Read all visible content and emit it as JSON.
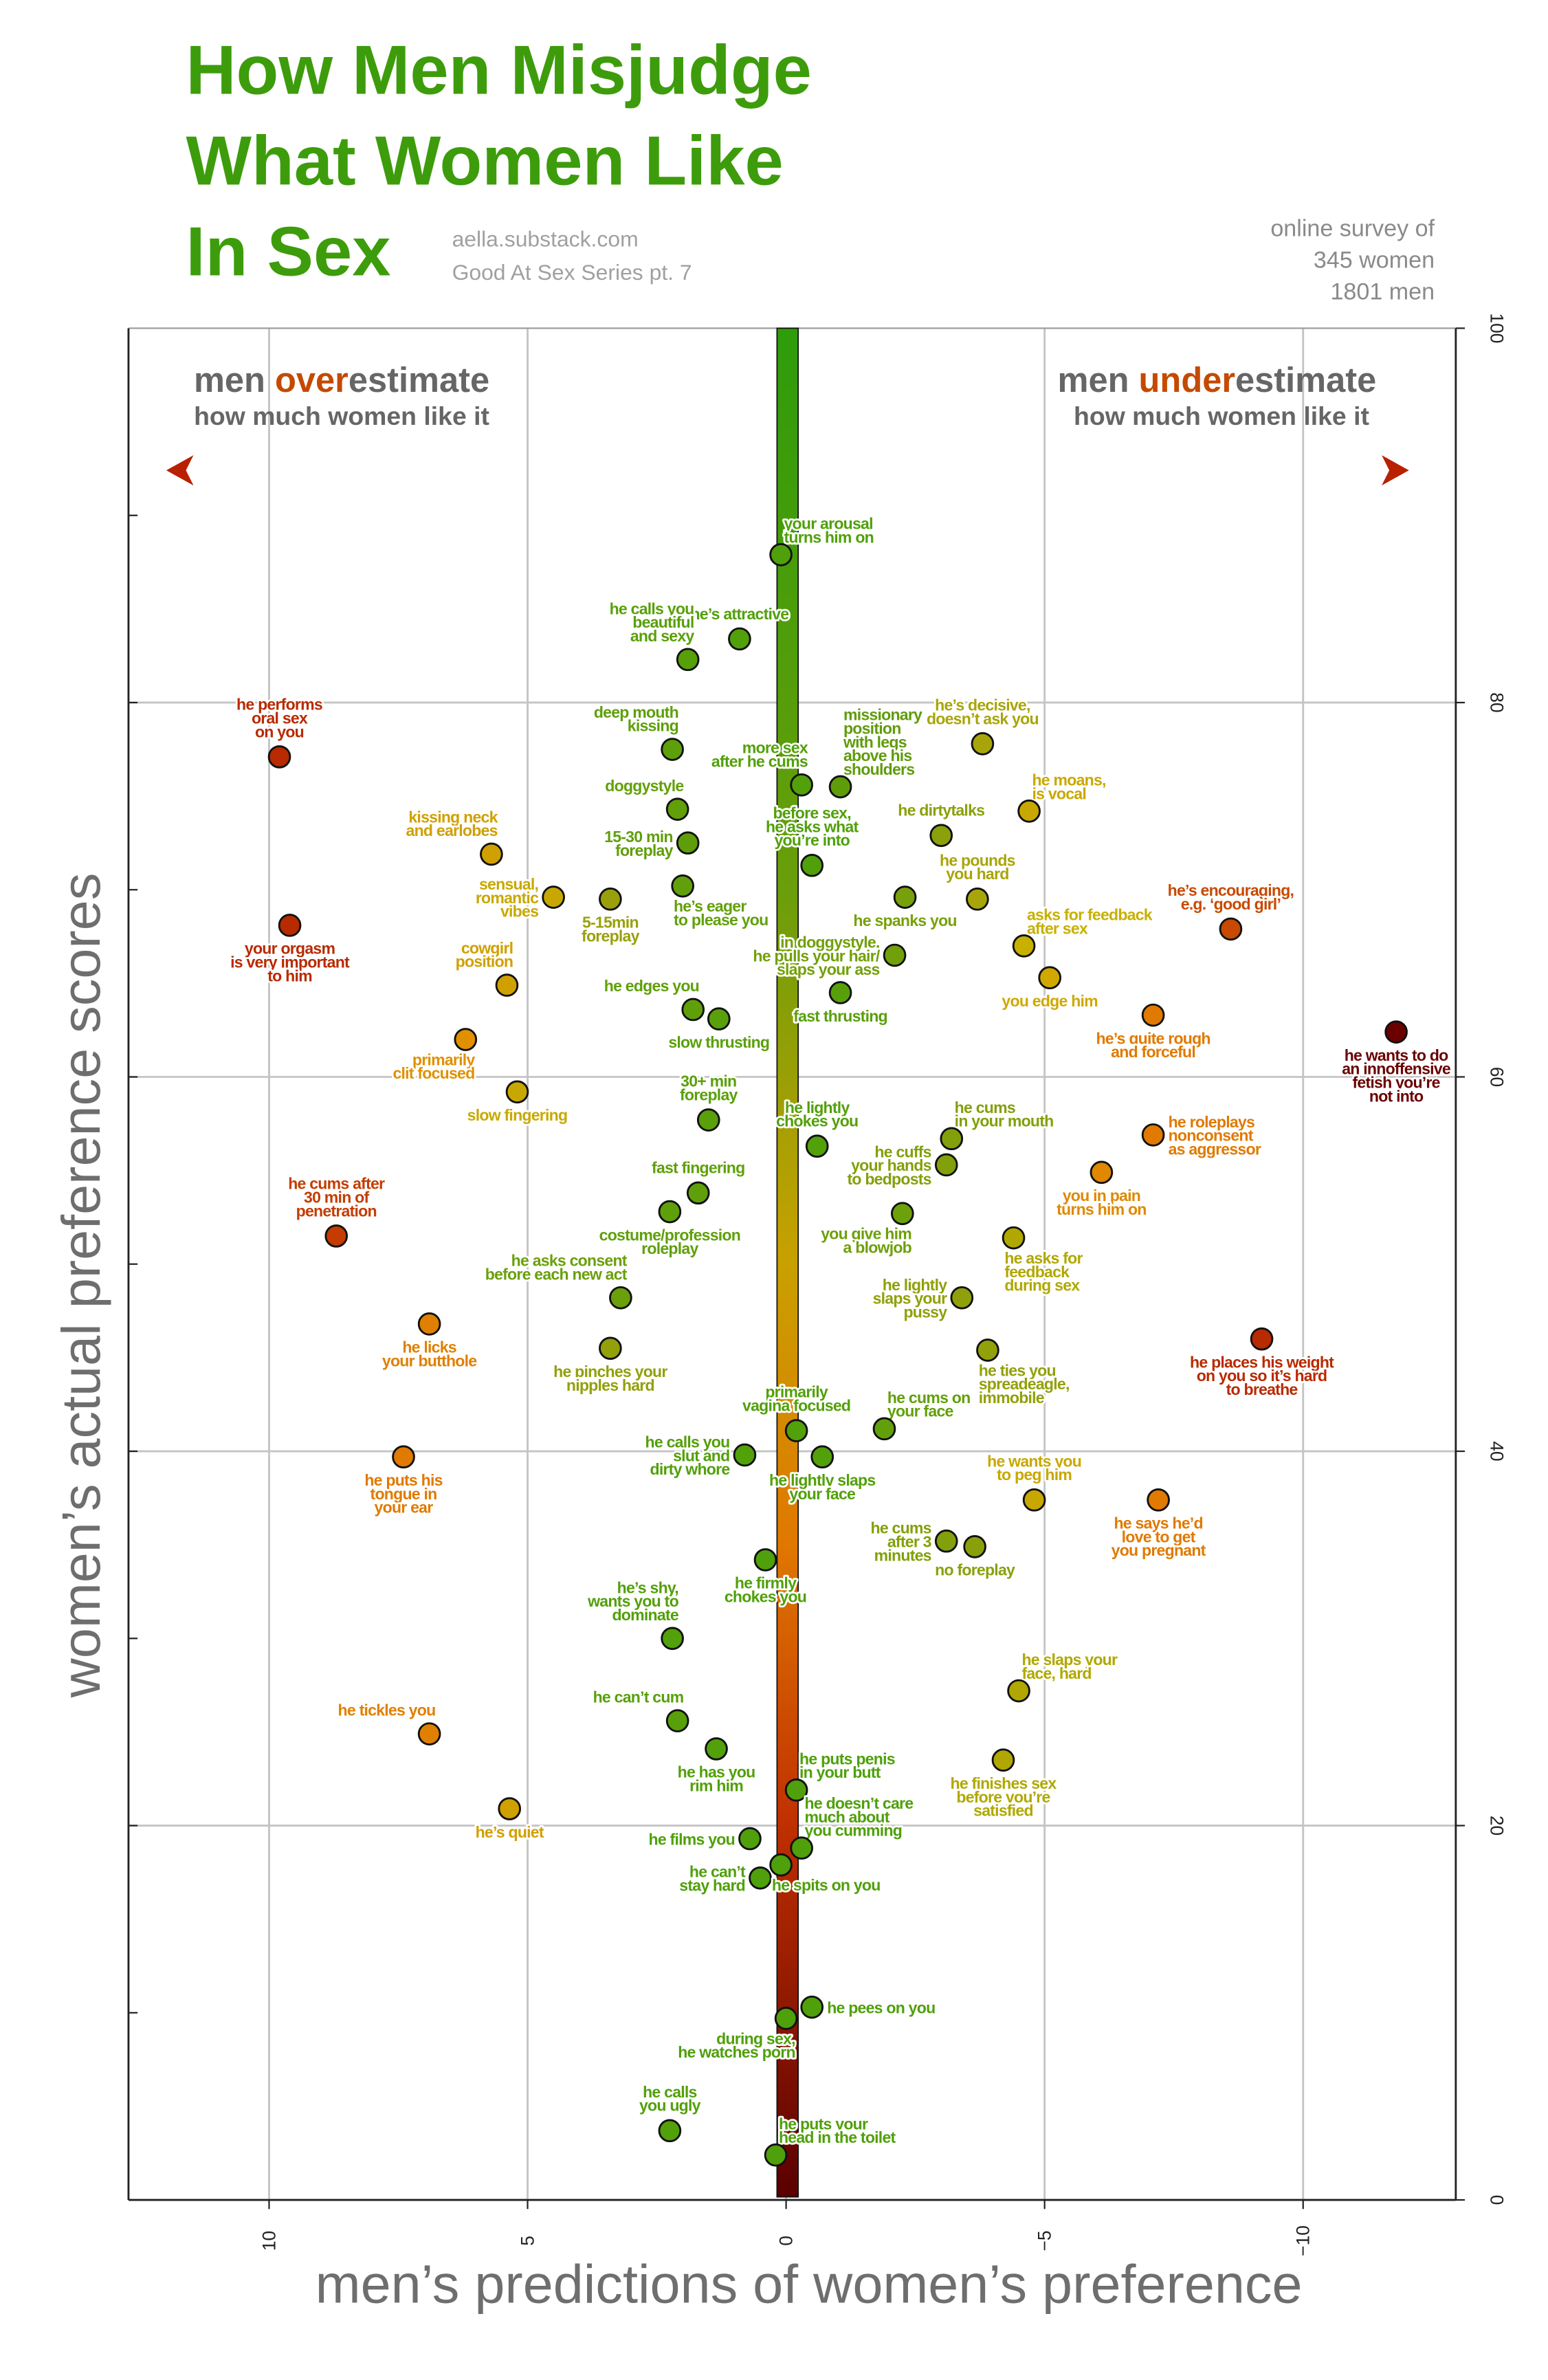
{
  "header": {
    "title_lines": [
      "How Men Misjudge",
      "What Women Like",
      "In Sex"
    ],
    "source": "aella.substack.com",
    "series": "Good At Sex Series pt. 7",
    "survey_lines": [
      "online survey of",
      "345 women",
      "1801 men"
    ]
  },
  "notes": {
    "left": {
      "pre": "men ",
      "em": "over",
      "post": "estimate",
      "line2": "how much women like it"
    },
    "right": {
      "pre": "men ",
      "em": "under",
      "post": "estimate",
      "line2": "how much women like it"
    },
    "em_color": "#c44a00"
  },
  "chart_data": {
    "type": "scatter",
    "title": "How Men Misjudge What Women Like In Sex",
    "xlabel": "men’s predictions of women’s preference",
    "ylabel": "women’s actual preference scores",
    "xlim": [
      12.5,
      -13
    ],
    "x_reversed": true,
    "ylim": [
      0,
      100
    ],
    "xticks": [
      10,
      5,
      0,
      -5,
      -10
    ],
    "xtick_labels": [
      "10",
      "5",
      "0",
      "−5",
      "−10"
    ],
    "yticks": [
      0,
      20,
      40,
      60,
      80,
      100
    ],
    "ytick_labels": [
      "0",
      "20",
      "40",
      "60",
      "80",
      "100"
    ],
    "grid": true,
    "points": [
      {
        "label": [
          "your arousal",
          "turns him on"
        ],
        "x": 0.1,
        "y": 87.9,
        "color": "#4fa00a",
        "pos": "above-right"
      },
      {
        "label": [
          "he’s attractive"
        ],
        "x": 0.9,
        "y": 83.4,
        "color": "#52a00a",
        "pos": "above"
      },
      {
        "label": [
          "he calls you",
          "beautiful",
          "and sexy"
        ],
        "x": 1.9,
        "y": 82.3,
        "color": "#58a00a",
        "pos": "above-left"
      },
      {
        "label": [
          "he performs",
          "oral sex",
          "on you"
        ],
        "x": 9.8,
        "y": 77.1,
        "color": "#b82a00",
        "pos": "above"
      },
      {
        "label": [
          "deep mouth",
          "kissing"
        ],
        "x": 2.2,
        "y": 77.5,
        "color": "#5da00a",
        "pos": "above-left"
      },
      {
        "label": [
          "missionary",
          "position",
          "with legs",
          "above his",
          "shoulders"
        ],
        "x": -1.05,
        "y": 75.5,
        "color": "#5f9c0a",
        "pos": "above-right"
      },
      {
        "label": [
          "more sex",
          "after he cums"
        ],
        "x": -0.3,
        "y": 75.6,
        "color": "#52a00a",
        "pos": "above-left"
      },
      {
        "label": [
          "he’s decisive,",
          "doesn’t ask you"
        ],
        "x": -3.8,
        "y": 77.8,
        "color": "#a8a50a",
        "pos": "above"
      },
      {
        "label": [
          "doggystyle"
        ],
        "x": 2.1,
        "y": 74.3,
        "color": "#62a00a",
        "pos": "above-left"
      },
      {
        "label": [
          "he moans,",
          "is vocal"
        ],
        "x": -4.7,
        "y": 74.2,
        "color": "#c8a800",
        "pos": "above-right"
      },
      {
        "label": [
          "15-30 min",
          "foreplay"
        ],
        "x": 1.9,
        "y": 72.5,
        "color": "#5f9e0a",
        "pos": "left"
      },
      {
        "label": [
          "he dirtytalks"
        ],
        "x": -3.0,
        "y": 72.9,
        "color": "#8ba00a",
        "pos": "above"
      },
      {
        "label": [
          "before sex,",
          "he asks what",
          "you’re into"
        ],
        "x": -0.5,
        "y": 71.3,
        "color": "#4fa00a",
        "pos": "above"
      },
      {
        "label": [
          "kissing neck",
          "and earlobes"
        ],
        "x": 5.7,
        "y": 71.9,
        "color": "#d0a000",
        "pos": "above-left"
      },
      {
        "label": [
          "sensual,",
          "romantic",
          "vibes"
        ],
        "x": 4.5,
        "y": 69.6,
        "color": "#c8a800",
        "pos": "left"
      },
      {
        "label": [
          "5-15min",
          "foreplay"
        ],
        "x": 3.4,
        "y": 69.5,
        "color": "#9aa00a",
        "pos": "below"
      },
      {
        "label": [
          "he’s eager",
          "to please you"
        ],
        "x": 2.0,
        "y": 70.2,
        "color": "#62a00a",
        "pos": "below-right"
      },
      {
        "label": [
          "he spanks you"
        ],
        "x": -2.3,
        "y": 69.6,
        "color": "#78a00a",
        "pos": "below"
      },
      {
        "label": [
          "he pounds",
          "you hard"
        ],
        "x": -3.7,
        "y": 69.5,
        "color": "#a8a50a",
        "pos": "above"
      },
      {
        "label": [
          "your orgasm",
          "is very important",
          "to him"
        ],
        "x": 9.6,
        "y": 68.1,
        "color": "#b82a00",
        "pos": "below"
      },
      {
        "label": [
          "he’s encouraging,",
          "e.g. ‘good girl’"
        ],
        "x": -8.6,
        "y": 67.9,
        "color": "#c84a00",
        "pos": "above"
      },
      {
        "label": [
          "in doggystyle,",
          "he pulls your hair/",
          "slaps your ass"
        ],
        "x": -2.1,
        "y": 66.5,
        "color": "#72a00a",
        "pos": "left"
      },
      {
        "label": [
          "asks for feedback",
          "after sex"
        ],
        "x": -4.6,
        "y": 67.0,
        "color": "#c8b000",
        "pos": "above-right"
      },
      {
        "label": [
          "cowgirl",
          "position"
        ],
        "x": 5.4,
        "y": 64.9,
        "color": "#d0a000",
        "pos": "above-left"
      },
      {
        "label": [
          "you edge him"
        ],
        "x": -5.1,
        "y": 65.3,
        "color": "#d0a800",
        "pos": "below"
      },
      {
        "label": [
          "he edges you"
        ],
        "x": 1.8,
        "y": 63.6,
        "color": "#5fa00a",
        "pos": "above-left"
      },
      {
        "label": [
          "slow thrusting"
        ],
        "x": 1.3,
        "y": 63.1,
        "color": "#5aa00a",
        "pos": "below"
      },
      {
        "label": [
          "fast thrusting"
        ],
        "x": -1.05,
        "y": 64.5,
        "color": "#58a00a",
        "pos": "below"
      },
      {
        "label": [
          "he’s quite rough",
          "and forceful"
        ],
        "x": -7.1,
        "y": 63.3,
        "color": "#e07a00",
        "pos": "below"
      },
      {
        "label": [
          "he wants to do",
          "an innoffensive",
          "fetish you’re",
          "not into"
        ],
        "x": -11.8,
        "y": 62.4,
        "color": "#6a0000",
        "pos": "below"
      },
      {
        "label": [
          "primarily",
          "clit focused"
        ],
        "x": 6.2,
        "y": 62.0,
        "color": "#e09000",
        "pos": "below-left"
      },
      {
        "label": [
          "slow fingering"
        ],
        "x": 5.2,
        "y": 59.2,
        "color": "#c8a800",
        "pos": "below"
      },
      {
        "label": [
          "30+ min",
          "foreplay"
        ],
        "x": 1.5,
        "y": 57.7,
        "color": "#5aa00a",
        "pos": "above"
      },
      {
        "label": [
          "he lightly",
          "chokes you"
        ],
        "x": -0.6,
        "y": 56.3,
        "color": "#52a00a",
        "pos": "above"
      },
      {
        "label": [
          "he cums",
          "in your mouth"
        ],
        "x": -3.2,
        "y": 56.7,
        "color": "#82a00a",
        "pos": "above-right"
      },
      {
        "label": [
          "he roleplays",
          "nonconsent",
          "as aggressor"
        ],
        "x": -7.1,
        "y": 56.9,
        "color": "#e07a00",
        "pos": "right"
      },
      {
        "label": [
          "he cuffs",
          "your hands",
          "to bedposts"
        ],
        "x": -3.1,
        "y": 55.3,
        "color": "#82a00a",
        "pos": "left"
      },
      {
        "label": [
          "fast fingering"
        ],
        "x": 1.7,
        "y": 53.8,
        "color": "#5fa00a",
        "pos": "above"
      },
      {
        "label": [
          "you in pain",
          "turns him on"
        ],
        "x": -6.1,
        "y": 54.9,
        "color": "#e08800",
        "pos": "below"
      },
      {
        "label": [
          "he cums after",
          "30 min of",
          "penetration"
        ],
        "x": 8.7,
        "y": 51.5,
        "color": "#c43c00",
        "pos": "above"
      },
      {
        "label": [
          "costume/profession",
          "roleplay"
        ],
        "x": 2.25,
        "y": 52.8,
        "color": "#5fa00a",
        "pos": "below"
      },
      {
        "label": [
          "you give him",
          "a blowjob"
        ],
        "x": -2.25,
        "y": 52.7,
        "color": "#6ea00a",
        "pos": "below-left"
      },
      {
        "label": [
          "he asks for",
          "feedback",
          "during sex"
        ],
        "x": -4.4,
        "y": 51.4,
        "color": "#b0a800",
        "pos": "below-right"
      },
      {
        "label": [
          "he asks consent",
          "before each new act"
        ],
        "x": 3.2,
        "y": 48.2,
        "color": "#6aa00a",
        "pos": "above-left"
      },
      {
        "label": [
          "he lightly",
          "slaps your",
          "pussy"
        ],
        "x": -3.4,
        "y": 48.2,
        "color": "#90a00a",
        "pos": "left"
      },
      {
        "label": [
          "he licks",
          "your butthole"
        ],
        "x": 6.9,
        "y": 46.8,
        "color": "#e08000",
        "pos": "below"
      },
      {
        "label": [
          "he pinches your",
          "nipples hard"
        ],
        "x": 3.4,
        "y": 45.5,
        "color": "#92a00a",
        "pos": "below"
      },
      {
        "label": [
          "he ties you",
          "spreadeagle,",
          "immobile"
        ],
        "x": -3.9,
        "y": 45.4,
        "color": "#92a00a",
        "pos": "below-right"
      },
      {
        "label": [
          "he places his weight",
          "on you so it’s hard",
          "to breathe"
        ],
        "x": -9.2,
        "y": 46.0,
        "color": "#b82a00",
        "pos": "below"
      },
      {
        "label": [
          "primarily",
          "vagina focused"
        ],
        "x": -0.2,
        "y": 41.1,
        "color": "#52a00a",
        "pos": "above"
      },
      {
        "label": [
          "he cums on",
          "your face"
        ],
        "x": -1.9,
        "y": 41.2,
        "color": "#62a00a",
        "pos": "above-right"
      },
      {
        "label": [
          "he calls you",
          "slut and",
          "dirty whore"
        ],
        "x": 0.8,
        "y": 39.8,
        "color": "#52a00a",
        "pos": "left"
      },
      {
        "label": [
          "he lightly slaps",
          "your face"
        ],
        "x": -0.7,
        "y": 39.7,
        "color": "#52a00a",
        "pos": "below"
      },
      {
        "label": [
          "he puts his",
          "tongue in",
          "your ear"
        ],
        "x": 7.4,
        "y": 39.7,
        "color": "#e07a00",
        "pos": "below"
      },
      {
        "label": [
          "he wants you",
          "to peg him"
        ],
        "x": -4.8,
        "y": 37.4,
        "color": "#c8a800",
        "pos": "above"
      },
      {
        "label": [
          "he says he’d",
          "love to get",
          "you pregnant"
        ],
        "x": -7.2,
        "y": 37.4,
        "color": "#e07a00",
        "pos": "below"
      },
      {
        "label": [
          "he cums",
          "after 3",
          "minutes"
        ],
        "x": -3.1,
        "y": 35.2,
        "color": "#82a00a",
        "pos": "left"
      },
      {
        "label": [
          "no foreplay"
        ],
        "x": -3.65,
        "y": 34.9,
        "color": "#8aa00a",
        "pos": "below"
      },
      {
        "label": [
          "he firmly",
          "chokes you"
        ],
        "x": 0.4,
        "y": 34.2,
        "color": "#4fa00a",
        "pos": "below"
      },
      {
        "label": [
          "he’s shy,",
          "wants you to",
          "dominate"
        ],
        "x": 2.2,
        "y": 30.0,
        "color": "#52a00a",
        "pos": "above-left"
      },
      {
        "label": [
          "he slaps your",
          "face, hard"
        ],
        "x": -4.5,
        "y": 27.2,
        "color": "#b0a800",
        "pos": "above-right"
      },
      {
        "label": [
          "he can’t cum"
        ],
        "x": 2.1,
        "y": 25.6,
        "color": "#58a00a",
        "pos": "above-left"
      },
      {
        "label": [
          "he tickles you"
        ],
        "x": 6.9,
        "y": 24.9,
        "color": "#e08000",
        "pos": "above-left"
      },
      {
        "label": [
          "he has you",
          "rim him"
        ],
        "x": 1.35,
        "y": 24.1,
        "color": "#52a00a",
        "pos": "below"
      },
      {
        "label": [
          "he finishes sex",
          "before you’re",
          "satisfied"
        ],
        "x": -4.2,
        "y": 23.5,
        "color": "#b0a800",
        "pos": "below"
      },
      {
        "label": [
          "he puts penis",
          "in your butt"
        ],
        "x": -0.2,
        "y": 21.9,
        "color": "#4fa00a",
        "pos": "above-right"
      },
      {
        "label": [
          "he’s quiet"
        ],
        "x": 5.35,
        "y": 20.9,
        "color": "#d0a000",
        "pos": "below"
      },
      {
        "label": [
          "he films you"
        ],
        "x": 0.7,
        "y": 19.3,
        "color": "#4fa00a",
        "pos": "left"
      },
      {
        "label": [
          "he doesn’t care",
          "much about",
          "you cumming"
        ],
        "x": -0.3,
        "y": 18.8,
        "color": "#4fa00a",
        "pos": "above-right"
      },
      {
        "label": [
          "he can’t",
          "stay hard"
        ],
        "x": 0.5,
        "y": 17.2,
        "color": "#4fa00a",
        "pos": "left"
      },
      {
        "label": [
          "he spits on you"
        ],
        "x": 0.1,
        "y": 17.9,
        "color": "#4fa00a",
        "pos": "below-right"
      },
      {
        "label": [
          "he pees on you"
        ],
        "x": -0.5,
        "y": 10.3,
        "color": "#4fa00a",
        "pos": "right"
      },
      {
        "label": [
          "during sex,",
          "he watches porn"
        ],
        "x": 0.0,
        "y": 9.7,
        "color": "#4fa00a",
        "pos": "below-left"
      },
      {
        "label": [
          "he calls",
          "you ugly"
        ],
        "x": 2.25,
        "y": 3.7,
        "color": "#52a00a",
        "pos": "above"
      },
      {
        "label": [
          "he puts your",
          "head in the toilet"
        ],
        "x": 0.2,
        "y": 2.4,
        "color": "#4fa00a",
        "pos": "above-right"
      }
    ]
  }
}
